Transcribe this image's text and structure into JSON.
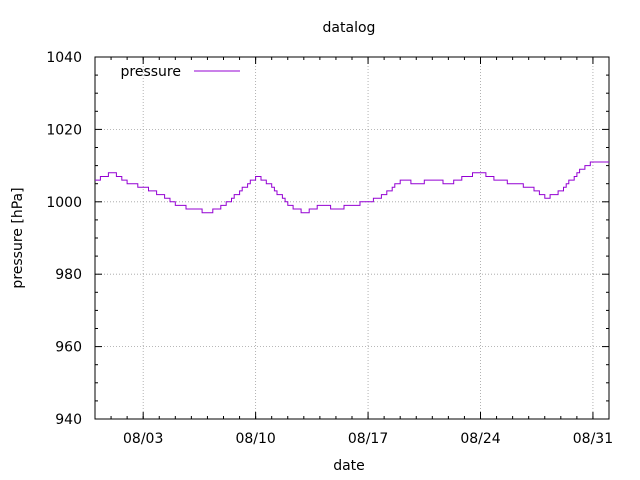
{
  "chart_data": {
    "type": "line",
    "title": "datalog",
    "xlabel": "date",
    "ylabel": "pressure [hPa]",
    "ylim": [
      940,
      1040
    ],
    "yticks": [
      940,
      960,
      980,
      1000,
      1020,
      1040
    ],
    "x_start": "2020-07-31",
    "x_end": "2020-09-01",
    "xticks": [
      {
        "date": "2020-08-03",
        "label": "08/03"
      },
      {
        "date": "2020-08-10",
        "label": "08/10"
      },
      {
        "date": "2020-08-17",
        "label": "08/17"
      },
      {
        "date": "2020-08-24",
        "label": "08/24"
      },
      {
        "date": "2020-08-31",
        "label": "08/31"
      }
    ],
    "grid": true,
    "legend_position": "top-left",
    "series": [
      {
        "name": "pressure",
        "color": "#9400d3",
        "step": true,
        "points": [
          [
            "2020-07-31",
            1006
          ],
          [
            "2020-08-01",
            1008
          ],
          [
            "2020-08-02",
            1005
          ],
          [
            "2020-08-03",
            1004
          ],
          [
            "2020-08-04",
            1002
          ],
          [
            "2020-08-05",
            999
          ],
          [
            "2020-08-06",
            998
          ],
          [
            "2020-08-07",
            997
          ],
          [
            "2020-08-08",
            999
          ],
          [
            "2020-08-09",
            1003
          ],
          [
            "2020-08-10",
            1007
          ],
          [
            "2020-08-11",
            1004
          ],
          [
            "2020-08-12",
            999
          ],
          [
            "2020-08-13",
            997
          ],
          [
            "2020-08-14",
            999
          ],
          [
            "2020-08-15",
            998
          ],
          [
            "2020-08-16",
            999
          ],
          [
            "2020-08-17",
            1000
          ],
          [
            "2020-08-18",
            1002
          ],
          [
            "2020-08-19",
            1006
          ],
          [
            "2020-08-20",
            1005
          ],
          [
            "2020-08-21",
            1006
          ],
          [
            "2020-08-22",
            1005
          ],
          [
            "2020-08-23",
            1007
          ],
          [
            "2020-08-24",
            1008
          ],
          [
            "2020-08-25",
            1006
          ],
          [
            "2020-08-26",
            1005
          ],
          [
            "2020-08-27",
            1004
          ],
          [
            "2020-08-28",
            1001
          ],
          [
            "2020-08-29",
            1003
          ],
          [
            "2020-08-30",
            1008
          ],
          [
            "2020-08-31",
            1011
          ],
          [
            "2020-09-01",
            1011
          ]
        ]
      }
    ]
  }
}
